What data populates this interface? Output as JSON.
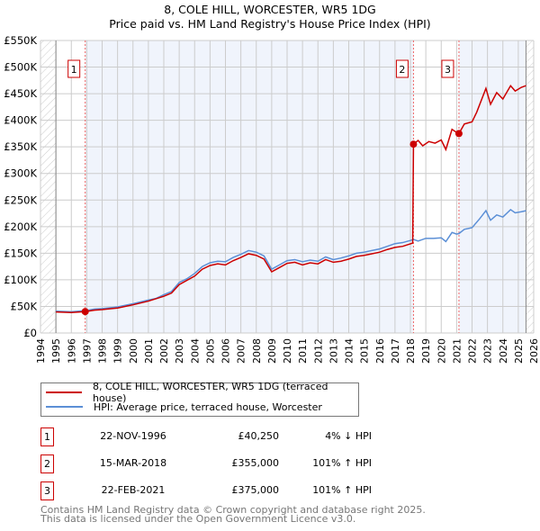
{
  "chart_data": {
    "type": "line",
    "title": "8, COLE HILL, WORCESTER, WR5 1DG",
    "subtitle": "Price paid vs. HM Land Registry's House Price Index (HPI)",
    "xlim": [
      1994,
      2026
    ],
    "ylim": [
      0,
      550000
    ],
    "x_ticks": [
      "1994",
      "1995",
      "1996",
      "1997",
      "1998",
      "1999",
      "2000",
      "2001",
      "2002",
      "2003",
      "2004",
      "2005",
      "2006",
      "2007",
      "2008",
      "2009",
      "2010",
      "2011",
      "2012",
      "2013",
      "2014",
      "2015",
      "2016",
      "2017",
      "2018",
      "2019",
      "2020",
      "2021",
      "2022",
      "2023",
      "2024",
      "2025",
      "2026"
    ],
    "y_ticks": [
      {
        "v": 0,
        "l": "£0"
      },
      {
        "v": 50000,
        "l": "£50K"
      },
      {
        "v": 100000,
        "l": "£100K"
      },
      {
        "v": 150000,
        "l": "£150K"
      },
      {
        "v": 200000,
        "l": "£200K"
      },
      {
        "v": 250000,
        "l": "£250K"
      },
      {
        "v": 300000,
        "l": "£300K"
      },
      {
        "v": 350000,
        "l": "£350K"
      },
      {
        "v": 400000,
        "l": "£400K"
      },
      {
        "v": 450000,
        "l": "£450K"
      },
      {
        "v": 500000,
        "l": "£500K"
      },
      {
        "v": 550000,
        "l": "£550K"
      }
    ],
    "grid": true,
    "data_range": [
      1995,
      2025.5
    ],
    "series": [
      {
        "name": "8, COLE HILL, WORCESTER, WR5 1DG (terraced house)",
        "color": "#cc0000",
        "x": [
          1995,
          1996,
          1996.9,
          1997.5,
          1998,
          1999,
          2000,
          2001,
          2002,
          2002.5,
          2003,
          2004,
          2004.5,
          2005,
          2005.5,
          2006,
          2006.5,
          2007,
          2007.5,
          2008,
          2008.5,
          2009,
          2009.5,
          2010,
          2010.5,
          2011,
          2011.5,
          2012,
          2012.5,
          2013,
          2013.5,
          2014,
          2014.5,
          2015,
          2015.5,
          2016,
          2016.5,
          2017,
          2017.5,
          2018.15,
          2018.2,
          2018.5,
          2018.8,
          2019.2,
          2019.6,
          2020,
          2020.3,
          2020.7,
          2021,
          2021.15,
          2021.5,
          2022,
          2022.3,
          2022.9,
          2023.2,
          2023.6,
          2024,
          2024.5,
          2024.8,
          2025.2,
          2025.5
        ],
        "y": [
          39500,
          38500,
          40250,
          43000,
          44000,
          47000,
          53000,
          60000,
          69000,
          75000,
          91000,
          107000,
          120000,
          127000,
          130000,
          128000,
          136000,
          142000,
          149000,
          146000,
          139000,
          115000,
          123000,
          131000,
          133000,
          128000,
          132000,
          130000,
          138000,
          133000,
          135000,
          139000,
          144000,
          146000,
          149000,
          152000,
          157000,
          161000,
          163000,
          169000,
          355000,
          362000,
          352000,
          360000,
          357000,
          363000,
          345000,
          383000,
          377000,
          375000,
          393000,
          397000,
          415000,
          460000,
          430000,
          452000,
          440000,
          465000,
          455000,
          462000,
          465000
        ]
      },
      {
        "name": "HPI: Average price, terraced house, Worcester",
        "color": "#5b8fd6",
        "x": [
          1995,
          1996,
          1996.9,
          1997.5,
          1998,
          1999,
          2000,
          2001,
          2001.5,
          2002,
          2002.5,
          2003,
          2003.5,
          2004,
          2004.5,
          2005,
          2005.5,
          2006,
          2006.5,
          2007,
          2007.5,
          2008,
          2008.5,
          2009,
          2009.5,
          2010,
          2010.5,
          2011,
          2011.5,
          2012,
          2012.5,
          2013,
          2013.5,
          2014,
          2014.5,
          2015,
          2015.5,
          2016,
          2016.5,
          2017,
          2017.5,
          2018,
          2018.2,
          2018.5,
          2019,
          2019.5,
          2020,
          2020.3,
          2020.7,
          2021,
          2021.15,
          2021.5,
          2022,
          2022.5,
          2022.9,
          2023.2,
          2023.6,
          2024,
          2024.5,
          2024.8,
          2025.2,
          2025.5
        ],
        "y": [
          41000,
          40000,
          42000,
          45000,
          46000,
          49000,
          55000,
          62000,
          65000,
          72000,
          78000,
          95000,
          102000,
          112000,
          125000,
          132000,
          135000,
          134000,
          142000,
          148000,
          155000,
          152000,
          145000,
          120000,
          128000,
          136000,
          138000,
          134000,
          137000,
          135000,
          143000,
          138000,
          141000,
          145000,
          150000,
          152000,
          155000,
          158000,
          163000,
          168000,
          170000,
          174000,
          176000,
          173000,
          178000,
          178000,
          179000,
          172000,
          189000,
          186000,
          187000,
          195000,
          198000,
          215000,
          230000,
          212000,
          222000,
          218000,
          232000,
          226000,
          228000,
          230000
        ]
      }
    ],
    "annotations": [
      {
        "n": "1",
        "x": 1996.9,
        "y": 40250
      },
      {
        "n": "2",
        "x": 2018.2,
        "y": 355000
      },
      {
        "n": "3",
        "x": 2021.15,
        "y": 375000
      }
    ]
  },
  "legend": [
    "8, COLE HILL, WORCESTER, WR5 1DG (terraced house)",
    "HPI: Average price, terraced house, Worcester"
  ],
  "sales": [
    {
      "n": "1",
      "date": "22-NOV-1996",
      "price": "£40,250",
      "hpi": "4% ↓ HPI"
    },
    {
      "n": "2",
      "date": "15-MAR-2018",
      "price": "£355,000",
      "hpi": "101% ↑ HPI"
    },
    {
      "n": "3",
      "date": "22-FEB-2021",
      "price": "£375,000",
      "hpi": "101% ↑ HPI"
    }
  ],
  "footer": [
    "Contains HM Land Registry data © Crown copyright and database right 2025.",
    "This data is licensed under the Open Government Licence v3.0."
  ]
}
